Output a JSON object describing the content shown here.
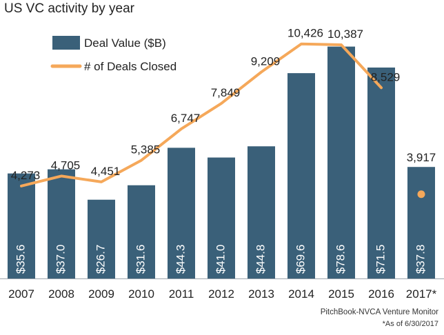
{
  "chart_data": {
    "type": "bar",
    "title": "US VC activity by year",
    "categories": [
      "2007",
      "2008",
      "2009",
      "2010",
      "2011",
      "2012",
      "2013",
      "2014",
      "2015",
      "2016",
      "2017*"
    ],
    "series": [
      {
        "name": "Deal Value ($B)",
        "type": "bar",
        "color": "#3a6079",
        "values": [
          35.6,
          37.0,
          26.7,
          31.6,
          44.3,
          41.0,
          44.8,
          69.6,
          78.6,
          71.5,
          37.8
        ],
        "value_labels": [
          "$35.6",
          "$37.0",
          "$26.7",
          "$31.6",
          "$44.3",
          "$41.0",
          "$44.8",
          "$69.6",
          "$78.6",
          "$71.5",
          "$37.8"
        ]
      },
      {
        "name": "# of Deals Closed",
        "type": "line",
        "color": "#f5a85a",
        "values": [
          4273,
          4705,
          4451,
          5385,
          6747,
          7849,
          9209,
          10426,
          10387,
          8529,
          3917
        ],
        "value_labels": [
          "4,273",
          "4,705",
          "4,451",
          "5,385",
          "6,747",
          "7,849",
          "9,209",
          "10,426",
          "10,387",
          "8,529",
          "3,917"
        ],
        "last_point_separate_marker": true
      }
    ],
    "legend_placement": "top-left",
    "grid": false,
    "source": "PitchBook-NVCA Venture Monitor",
    "footnote": "*As of 6/30/2017"
  }
}
